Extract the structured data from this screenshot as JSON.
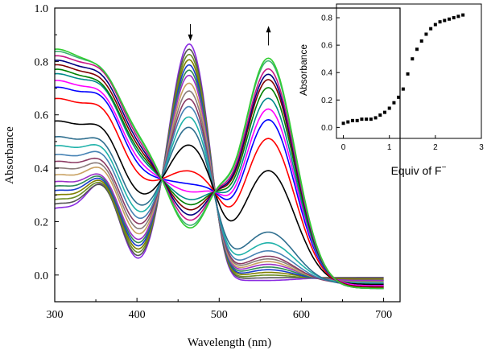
{
  "chart_data": [
    {
      "type": "line",
      "title": "",
      "xlabel": "Wavelength (nm)",
      "ylabel": "Absorbance",
      "xlim": [
        300,
        720
      ],
      "ylim": [
        -0.1,
        1.0
      ],
      "x_ticks": [
        300,
        400,
        500,
        600,
        700
      ],
      "y_ticks": [
        0.0,
        0.2,
        0.4,
        0.6,
        0.8,
        1.0
      ],
      "x_tick_labels": [
        "300",
        "400",
        "500",
        "600",
        "700"
      ],
      "y_tick_labels": [
        "0.0",
        "0.2",
        "0.4",
        "0.6",
        "0.8",
        "1.0"
      ],
      "grid": false,
      "annotations": [
        {
          "kind": "arrow-down",
          "x": 465,
          "y_from": 0.94,
          "y_to": 0.88
        },
        {
          "kind": "arrow-up",
          "x": 560,
          "y_from": 0.86,
          "y_to": 0.93
        }
      ],
      "series": [
        {
          "color": "#8a2be2",
          "values": {
            "b360": 0.65,
            "b400": 0.42,
            "b465": 0.87,
            "b500": 0.33,
            "b560": -0.02,
            "tail": -0.01
          }
        },
        {
          "color": "#555555",
          "values": {
            "b360": 0.63,
            "b400": 0.41,
            "b465": 0.85,
            "b500": 0.33,
            "b560": -0.01,
            "tail": -0.01
          }
        },
        {
          "color": "#6b8e23",
          "values": {
            "b360": 0.62,
            "b400": 0.4,
            "b465": 0.83,
            "b500": 0.33,
            "b560": 0.0,
            "tail": -0.015
          }
        },
        {
          "color": "#808000",
          "values": {
            "b360": 0.61,
            "b400": 0.4,
            "b465": 0.81,
            "b500": 0.33,
            "b560": 0.01,
            "tail": -0.015
          }
        },
        {
          "color": "#1a3dcc",
          "values": {
            "b360": 0.6,
            "b400": 0.39,
            "b465": 0.79,
            "b500": 0.33,
            "b560": 0.02,
            "tail": -0.02
          }
        },
        {
          "color": "#2e8b57",
          "values": {
            "b360": 0.59,
            "b400": 0.38,
            "b465": 0.77,
            "b500": 0.33,
            "b560": 0.03,
            "tail": -0.02
          }
        },
        {
          "color": "#9b30c8",
          "values": {
            "b360": 0.58,
            "b400": 0.38,
            "b465": 0.75,
            "b500": 0.33,
            "b560": 0.04,
            "tail": -0.02
          }
        },
        {
          "color": "#c8a060",
          "values": {
            "b360": 0.58,
            "b400": 0.37,
            "b465": 0.72,
            "b500": 0.33,
            "b560": 0.05,
            "tail": -0.025
          }
        },
        {
          "color": "#8b7d7b",
          "values": {
            "b360": 0.57,
            "b400": 0.37,
            "b465": 0.69,
            "b500": 0.33,
            "b560": 0.06,
            "tail": -0.025
          }
        },
        {
          "color": "#8b3a62",
          "values": {
            "b360": 0.56,
            "b400": 0.36,
            "b465": 0.66,
            "b500": 0.33,
            "b560": 0.07,
            "tail": -0.03
          }
        },
        {
          "color": "#4682b4",
          "values": {
            "b360": 0.56,
            "b400": 0.36,
            "b465": 0.63,
            "b500": 0.33,
            "b560": 0.09,
            "tail": -0.03
          }
        },
        {
          "color": "#20b2aa",
          "values": {
            "b360": 0.55,
            "b400": 0.35,
            "b465": 0.59,
            "b500": 0.33,
            "b560": 0.12,
            "tail": -0.03
          }
        },
        {
          "color": "#2f6f8f",
          "values": {
            "b360": 0.54,
            "b400": 0.35,
            "b465": 0.55,
            "b500": 0.33,
            "b560": 0.16,
            "tail": -0.035
          }
        },
        {
          "color": "#000000",
          "values": {
            "b360": 0.53,
            "b400": 0.34,
            "b465": 0.48,
            "b500": 0.33,
            "b560": 0.39,
            "tail": -0.035
          }
        },
        {
          "color": "#ff0000",
          "values": {
            "b360": 0.52,
            "b400": 0.33,
            "b465": 0.38,
            "b500": 0.33,
            "b560": 0.51,
            "tail": -0.04
          }
        },
        {
          "color": "#0000ff",
          "values": {
            "b360": 0.52,
            "b400": 0.33,
            "b465": 0.33,
            "b500": 0.33,
            "b560": 0.58,
            "tail": -0.04
          }
        },
        {
          "color": "#ff00ff",
          "values": {
            "b360": 0.51,
            "b400": 0.32,
            "b465": 0.3,
            "b500": 0.33,
            "b560": 0.62,
            "tail": -0.04
          }
        },
        {
          "color": "#008b8b",
          "values": {
            "b360": 0.51,
            "b400": 0.31,
            "b465": 0.27,
            "b500": 0.33,
            "b560": 0.66,
            "tail": -0.045
          }
        },
        {
          "color": "#008000",
          "values": {
            "b360": 0.5,
            "b400": 0.31,
            "b465": 0.25,
            "b500": 0.33,
            "b560": 0.7,
            "tail": -0.045
          }
        },
        {
          "color": "#800000",
          "values": {
            "b360": 0.5,
            "b400": 0.3,
            "b465": 0.23,
            "b500": 0.33,
            "b560": 0.73,
            "tail": -0.045
          }
        },
        {
          "color": "#000080",
          "values": {
            "b360": 0.5,
            "b400": 0.3,
            "b465": 0.21,
            "b500": 0.33,
            "b560": 0.75,
            "tail": -0.05
          }
        },
        {
          "color": "#c71585",
          "values": {
            "b360": 0.5,
            "b400": 0.3,
            "b465": 0.19,
            "b500": 0.33,
            "b560": 0.77,
            "tail": -0.05
          }
        },
        {
          "color": "#3cb371",
          "values": {
            "b360": 0.49,
            "b400": 0.29,
            "b465": 0.17,
            "b500": 0.33,
            "b560": 0.8,
            "tail": -0.05
          }
        },
        {
          "color": "#32cd32",
          "values": {
            "b360": 0.48,
            "b400": 0.29,
            "b465": 0.16,
            "b500": 0.33,
            "b560": 0.81,
            "tail": -0.05
          }
        }
      ]
    },
    {
      "type": "scatter",
      "title": "",
      "xlabel": "Equiv of F",
      "xlabel_superscript": "−",
      "ylabel": "Absorbance",
      "xlim": [
        -0.15,
        3.0
      ],
      "ylim": [
        -0.08,
        0.9
      ],
      "x_ticks": [
        0,
        1,
        2,
        3
      ],
      "y_ticks": [
        0.0,
        0.2,
        0.4,
        0.6,
        0.8
      ],
      "x_tick_labels": [
        "0",
        "1",
        "2",
        "3"
      ],
      "y_tick_labels": [
        "0.0",
        "0.2",
        "0.4",
        "0.6",
        "0.8"
      ],
      "grid": false,
      "x": [
        0.0,
        0.1,
        0.2,
        0.3,
        0.4,
        0.5,
        0.6,
        0.7,
        0.8,
        0.9,
        1.0,
        1.1,
        1.2,
        1.3,
        1.4,
        1.5,
        1.6,
        1.7,
        1.8,
        1.9,
        2.0,
        2.1,
        2.2,
        2.3,
        2.4,
        2.5,
        2.6
      ],
      "y": [
        0.03,
        0.04,
        0.05,
        0.05,
        0.06,
        0.06,
        0.06,
        0.07,
        0.09,
        0.11,
        0.14,
        0.18,
        0.22,
        0.28,
        0.39,
        0.5,
        0.57,
        0.63,
        0.68,
        0.72,
        0.75,
        0.77,
        0.78,
        0.79,
        0.8,
        0.81,
        0.82
      ]
    }
  ]
}
